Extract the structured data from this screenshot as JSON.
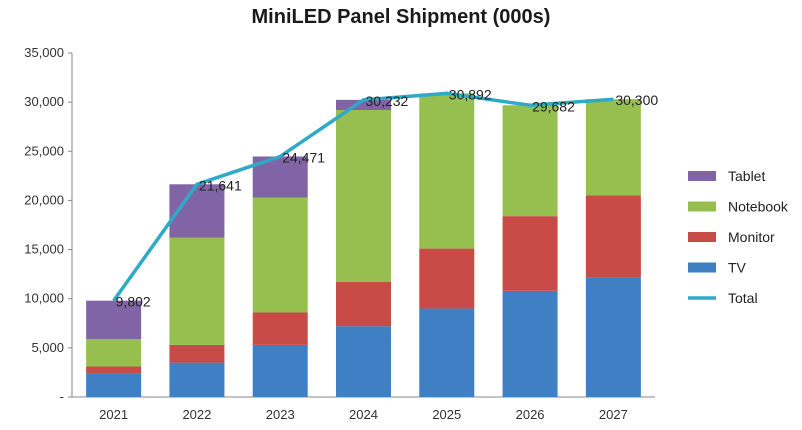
{
  "chart_data": {
    "type": "bar",
    "title": "MiniLED Panel Shipment (000s)",
    "stacked": true,
    "categories": [
      "2021",
      "2022",
      "2023",
      "2024",
      "2025",
      "2026",
      "2027"
    ],
    "series": [
      {
        "name": "TV",
        "color": "#3f7fc4",
        "values": [
          2400,
          3500,
          5300,
          7200,
          9000,
          10800,
          12200
        ]
      },
      {
        "name": "Monitor",
        "color": "#c84b47",
        "values": [
          700,
          1800,
          3300,
          4500,
          6100,
          7600,
          8300
        ]
      },
      {
        "name": "Notebook",
        "color": "#96bf4f",
        "values": [
          2800,
          10900,
          11700,
          17500,
          15792,
          11282,
          9800
        ]
      },
      {
        "name": "Tablet",
        "color": "#8064a6",
        "values": [
          3902,
          5441,
          4171,
          1032,
          0,
          0,
          0
        ]
      }
    ],
    "line_series": {
      "name": "Total",
      "color": "#2eaac9",
      "values": [
        9802,
        21641,
        24471,
        30232,
        30892,
        29682,
        30300
      ]
    },
    "data_labels": [
      "9,802",
      "21,641",
      "24,471",
      "30,232",
      "30,892",
      "29,682",
      "30,300"
    ],
    "y_ticks": [
      "-",
      "5,000",
      "10,000",
      "15,000",
      "20,000",
      "25,000",
      "30,000",
      "35,000"
    ],
    "ylim": [
      0,
      35000
    ],
    "legend_order": [
      "Tablet",
      "Notebook",
      "Monitor",
      "TV",
      "Total"
    ],
    "legend_position": "right",
    "grid": false
  }
}
